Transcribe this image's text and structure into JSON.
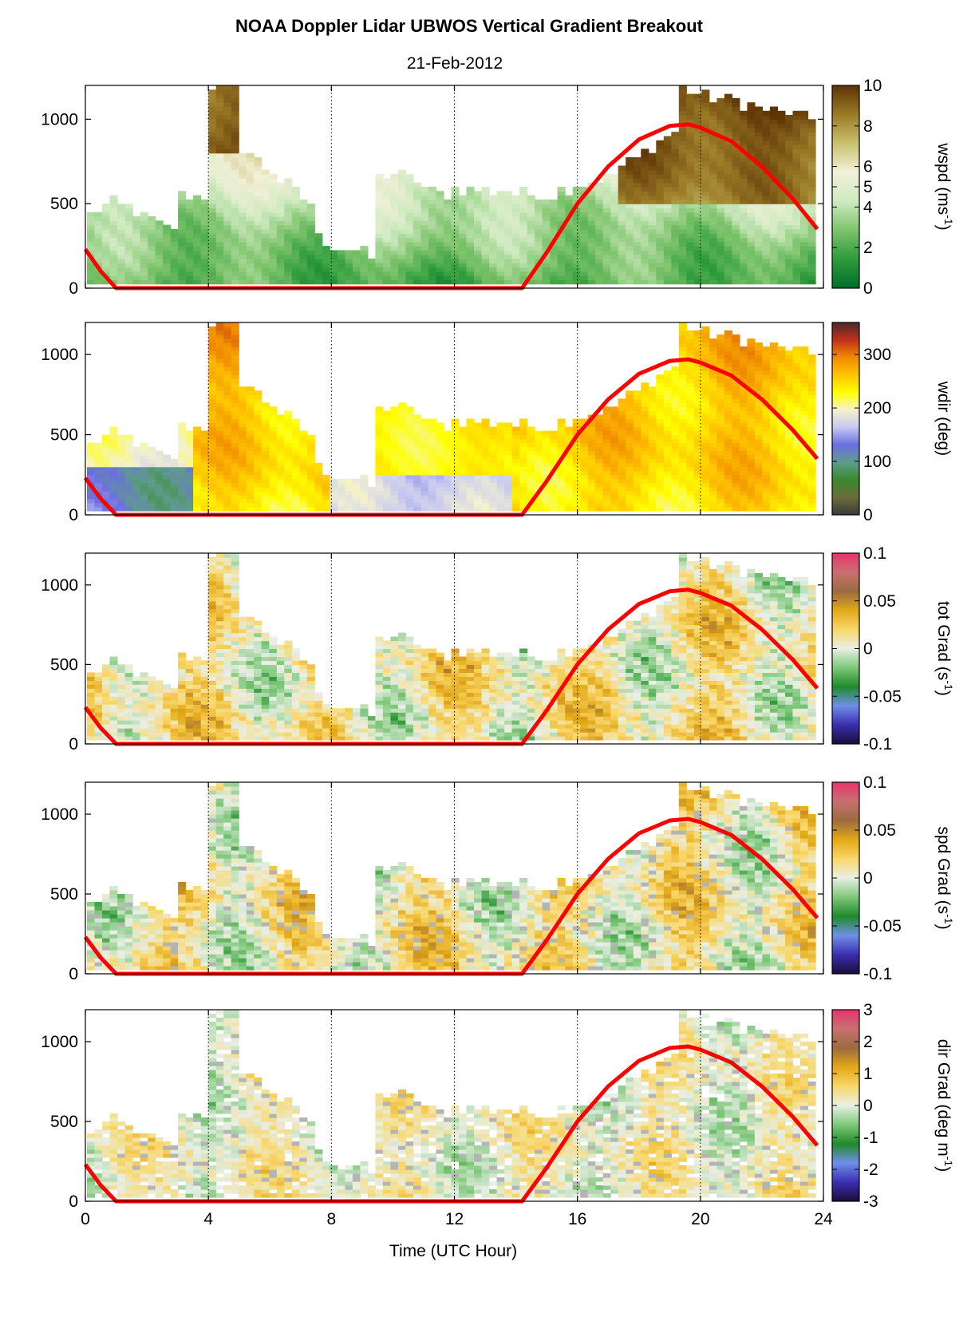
{
  "title": "NOAA Doppler Lidar  UBWOS  Vertical Gradient Breakout",
  "date": "21-Feb-2012",
  "x_axis": {
    "label": "Time (UTC Hour)",
    "ticks": [
      "0",
      "4",
      "8",
      "12",
      "16",
      "20",
      "24"
    ],
    "range": [
      0,
      24
    ]
  },
  "colors": {
    "overlay_line": "#ff0000"
  },
  "chart_data": [
    {
      "type": "heatmap",
      "variable": "wspd",
      "cbar_label": [
        "wspd (ms",
        "-1",
        ")"
      ],
      "cbar_ticks": [
        {
          "v": 10,
          "t": "10"
        },
        {
          "v": 8,
          "t": "8"
        },
        {
          "v": 6,
          "t": "6"
        },
        {
          "v": 5,
          "t": "5"
        },
        {
          "v": 4,
          "t": "4"
        },
        {
          "v": 2,
          "t": "2"
        },
        {
          "v": 0,
          "t": "0"
        }
      ],
      "cbar_range": [
        0,
        10
      ],
      "colorscale": [
        "#006d2c",
        "#2e9b3c",
        "#7cc36b",
        "#cfeac0",
        "#f3f0da",
        "#c8c16e",
        "#9a7a26",
        "#5c3305"
      ],
      "y_ticks": [
        "0",
        "500",
        "1000"
      ],
      "ylim": [
        0,
        1200
      ]
    },
    {
      "type": "heatmap",
      "variable": "wdir",
      "cbar_label": [
        "wdir (deg)"
      ],
      "cbar_ticks": [
        {
          "v": 300,
          "t": "300"
        },
        {
          "v": 200,
          "t": "200"
        },
        {
          "v": 100,
          "t": "100"
        },
        {
          "v": 0,
          "t": "0"
        }
      ],
      "cbar_range": [
        0,
        360
      ],
      "colorscale": [
        "#3b3b3b",
        "#6b6b3a",
        "#3a8a2d",
        "#5f9b8c",
        "#6a6ee0",
        "#c6c8f0",
        "#f4f2d0",
        "#ffff00",
        "#ffc400",
        "#f08a00",
        "#c0301c",
        "#4a2a2a"
      ],
      "y_ticks": [
        "0",
        "500",
        "1000"
      ],
      "ylim": [
        0,
        1200
      ]
    },
    {
      "type": "heatmap",
      "variable": "tot Grad",
      "cbar_label": [
        "tot Grad (s",
        "-1",
        ")"
      ],
      "cbar_ticks": [
        {
          "v": 0.1,
          "t": "0.1"
        },
        {
          "v": 0.05,
          "t": "0.05"
        },
        {
          "v": 0,
          "t": "0"
        },
        {
          "v": -0.05,
          "t": "-0.05"
        },
        {
          "v": -0.1,
          "t": "-0.1"
        }
      ],
      "cbar_range": [
        -0.1,
        0.1
      ],
      "colorscale": [
        "#1a0c3a",
        "#3a2fb0",
        "#6f8fe8",
        "#1f8a2a",
        "#7ec87a",
        "#e9efe6",
        "#f9d76a",
        "#e3a817",
        "#9b6b40",
        "#c87070",
        "#e8346c"
      ],
      "y_ticks": [
        "0",
        "500",
        "1000"
      ],
      "ylim": [
        0,
        1200
      ]
    },
    {
      "type": "heatmap",
      "variable": "spd Grad",
      "cbar_label": [
        "spd Grad (s",
        "-1",
        ")"
      ],
      "cbar_ticks": [
        {
          "v": 0.1,
          "t": "0.1"
        },
        {
          "v": 0.05,
          "t": "0.05"
        },
        {
          "v": 0,
          "t": "0"
        },
        {
          "v": -0.05,
          "t": "-0.05"
        },
        {
          "v": -0.1,
          "t": "-0.1"
        }
      ],
      "cbar_range": [
        -0.1,
        0.1
      ],
      "colorscale": [
        "#1a0c3a",
        "#3a2fb0",
        "#6f8fe8",
        "#1f8a2a",
        "#7ec87a",
        "#e9efe6",
        "#f9d76a",
        "#e3a817",
        "#9b6b40",
        "#c87070",
        "#e8346c"
      ],
      "y_ticks": [
        "0",
        "500",
        "1000"
      ],
      "ylim": [
        0,
        1200
      ]
    },
    {
      "type": "heatmap",
      "variable": "dir Grad",
      "cbar_label": [
        "dir Grad (deg m",
        "-1",
        ")"
      ],
      "cbar_ticks": [
        {
          "v": 3,
          "t": "3"
        },
        {
          "v": 2,
          "t": "2"
        },
        {
          "v": 1,
          "t": "1"
        },
        {
          "v": 0,
          "t": "0"
        },
        {
          "v": -1,
          "t": "-1"
        },
        {
          "v": -2,
          "t": "-2"
        },
        {
          "v": -3,
          "t": "-3"
        }
      ],
      "cbar_range": [
        -3,
        3
      ],
      "colorscale": [
        "#1a0c3a",
        "#3a2fb0",
        "#6f8fe8",
        "#1f8a2a",
        "#7ec87a",
        "#e9efe6",
        "#f9d76a",
        "#e3a817",
        "#9b6b40",
        "#c87070",
        "#e8346c"
      ],
      "y_ticks": [
        "0",
        "500",
        "1000"
      ],
      "ylim": [
        0,
        1200
      ]
    }
  ],
  "overlay_curve": {
    "type": "line",
    "x": [
      0.0,
      0.5,
      1.0,
      14.2,
      15.0,
      16.0,
      17.0,
      18.0,
      19.0,
      19.6,
      20.0,
      21.0,
      22.0,
      23.0,
      23.8
    ],
    "y": [
      230,
      100,
      0,
      0,
      210,
      500,
      720,
      880,
      960,
      970,
      950,
      870,
      720,
      530,
      350
    ]
  }
}
